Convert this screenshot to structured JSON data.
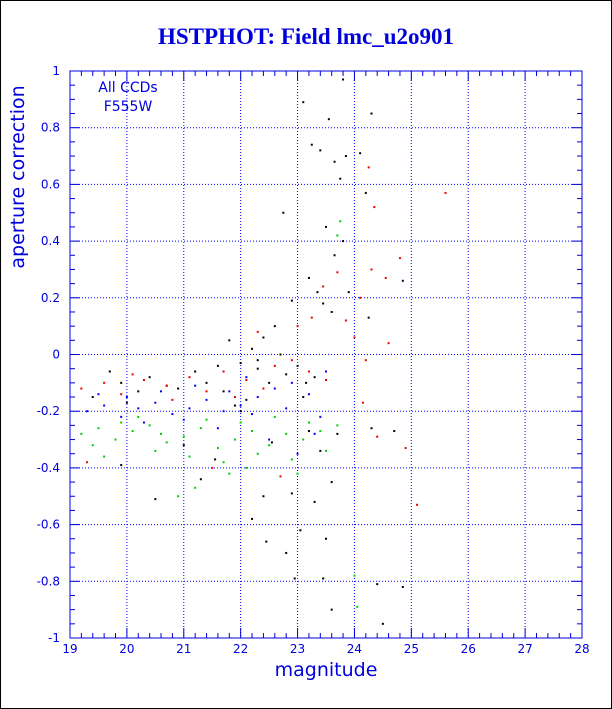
{
  "chart_data": {
    "type": "scatter",
    "title": "HSTPHOT: Field lmc_u2o901",
    "xlabel": "magnitude",
    "ylabel": "aperture correction",
    "xlim": [
      19,
      28
    ],
    "ylim": [
      -1,
      1
    ],
    "xticks": [
      19,
      20,
      21,
      22,
      23,
      24,
      25,
      26,
      27,
      28
    ],
    "xtick_labels": [
      "19",
      "20",
      "21",
      "22",
      "23",
      "24",
      "25",
      "26",
      "27",
      "28"
    ],
    "yticks": [
      -1,
      -0.8,
      -0.6,
      -0.4,
      -0.2,
      0,
      0.2,
      0.4,
      0.6,
      0.8,
      1
    ],
    "ytick_labels": [
      "-1",
      "-0.8",
      "-0.6",
      "-0.4",
      "-0.2",
      "0",
      "0.2",
      "0.4",
      "0.6",
      "0.8",
      "1"
    ],
    "grid": true,
    "annotations": [
      "All CCDs",
      "F555W"
    ],
    "colors": {
      "title": "#0000dd",
      "axis": "#0000dd",
      "grid": "#0000ff"
    },
    "series": [
      {
        "color": "#000000",
        "points": [
          [
            23.1,
            0.89
          ],
          [
            23.25,
            0.74
          ],
          [
            23.4,
            0.72
          ],
          [
            23.55,
            0.83
          ],
          [
            23.65,
            0.68
          ],
          [
            23.75,
            0.62
          ],
          [
            23.8,
            0.97
          ],
          [
            23.85,
            0.7
          ],
          [
            22.75,
            0.5
          ],
          [
            23.5,
            0.45
          ],
          [
            23.65,
            0.35
          ],
          [
            23.8,
            0.4
          ],
          [
            24.1,
            0.71
          ],
          [
            24.2,
            0.57
          ],
          [
            24.3,
            0.85
          ],
          [
            24.85,
            0.26
          ],
          [
            23.2,
            0.27
          ],
          [
            23.35,
            0.22
          ],
          [
            23.45,
            0.18
          ],
          [
            23.9,
            0.22
          ],
          [
            24.25,
            0.13
          ],
          [
            22.9,
            0.19
          ],
          [
            23.6,
            0.15
          ],
          [
            22.6,
            0.1
          ],
          [
            22.4,
            0.06
          ],
          [
            22.2,
            0.02
          ],
          [
            21.8,
            0.05
          ],
          [
            22.0,
            -0.03
          ],
          [
            21.6,
            -0.04
          ],
          [
            22.3,
            -0.02
          ],
          [
            22.7,
            0.0
          ],
          [
            23.0,
            -0.04
          ],
          [
            21.2,
            -0.06
          ],
          [
            20.4,
            -0.08
          ],
          [
            19.7,
            -0.06
          ],
          [
            23.3,
            -0.08
          ],
          [
            21.4,
            -0.1
          ],
          [
            20.9,
            -0.12
          ],
          [
            22.5,
            -0.1
          ],
          [
            19.4,
            -0.15
          ],
          [
            21.9,
            -0.18
          ],
          [
            22.1,
            -0.16
          ],
          [
            20.2,
            -0.13
          ],
          [
            23.1,
            -0.15
          ],
          [
            20.7,
            -0.11
          ],
          [
            22.8,
            -0.07
          ],
          [
            21.7,
            -0.13
          ],
          [
            19.9,
            -0.1
          ],
          [
            23.2,
            -0.27
          ],
          [
            23.4,
            -0.34
          ],
          [
            23.6,
            -0.45
          ],
          [
            23.7,
            -0.28
          ],
          [
            24.3,
            -0.26
          ],
          [
            24.7,
            -0.27
          ],
          [
            22.4,
            -0.5
          ],
          [
            22.2,
            -0.58
          ],
          [
            22.45,
            -0.66
          ],
          [
            22.9,
            -0.49
          ],
          [
            23.3,
            -0.52
          ],
          [
            23.5,
            -0.65
          ],
          [
            23.05,
            -0.62
          ],
          [
            22.8,
            -0.7
          ],
          [
            22.95,
            -0.79
          ],
          [
            23.45,
            -0.79
          ],
          [
            23.6,
            -0.9
          ],
          [
            24.4,
            -0.81
          ],
          [
            24.5,
            -0.95
          ],
          [
            24.85,
            -0.82
          ],
          [
            20.5,
            -0.51
          ],
          [
            21.3,
            -0.44
          ],
          [
            19.9,
            -0.39
          ],
          [
            21.0,
            -0.32
          ],
          [
            22.55,
            -0.31
          ],
          [
            21.55,
            -0.37
          ],
          [
            22.3,
            -0.05
          ],
          [
            23.15,
            -0.1
          ],
          [
            22.0,
            -0.2
          ],
          [
            20.0,
            -0.17
          ]
        ]
      },
      {
        "color": "#ee0000",
        "points": [
          [
            24.25,
            0.66
          ],
          [
            24.35,
            0.52
          ],
          [
            25.6,
            0.57
          ],
          [
            24.8,
            0.34
          ],
          [
            24.3,
            0.3
          ],
          [
            24.55,
            0.27
          ],
          [
            24.1,
            0.2
          ],
          [
            23.7,
            0.29
          ],
          [
            23.45,
            0.24
          ],
          [
            23.25,
            0.13
          ],
          [
            23.0,
            0.1
          ],
          [
            23.85,
            0.12
          ],
          [
            24.0,
            0.06
          ],
          [
            24.2,
            -0.02
          ],
          [
            24.6,
            0.04
          ],
          [
            22.3,
            0.08
          ],
          [
            22.9,
            -0.02
          ],
          [
            21.7,
            -0.06
          ],
          [
            21.1,
            -0.08
          ],
          [
            20.3,
            -0.09
          ],
          [
            19.6,
            -0.1
          ],
          [
            19.2,
            -0.12
          ],
          [
            19.9,
            -0.14
          ],
          [
            20.7,
            -0.11
          ],
          [
            21.4,
            -0.13
          ],
          [
            22.1,
            -0.09
          ],
          [
            22.6,
            -0.04
          ],
          [
            23.2,
            -0.06
          ],
          [
            24.15,
            -0.17
          ],
          [
            24.4,
            -0.29
          ],
          [
            24.9,
            -0.33
          ],
          [
            25.1,
            -0.53
          ],
          [
            21.5,
            -0.4
          ],
          [
            22.7,
            -0.43
          ],
          [
            19.3,
            -0.38
          ],
          [
            20.1,
            -0.07
          ],
          [
            20.8,
            -0.16
          ],
          [
            21.9,
            -0.15
          ],
          [
            22.4,
            -0.12
          ],
          [
            23.5,
            -0.09
          ]
        ]
      },
      {
        "color": "#0000ff",
        "points": [
          [
            19.3,
            -0.2
          ],
          [
            19.6,
            -0.18
          ],
          [
            19.9,
            -0.22
          ],
          [
            20.2,
            -0.19
          ],
          [
            20.5,
            -0.17
          ],
          [
            20.8,
            -0.21
          ],
          [
            21.1,
            -0.19
          ],
          [
            21.4,
            -0.16
          ],
          [
            21.7,
            -0.2
          ],
          [
            22.0,
            -0.18
          ],
          [
            22.3,
            -0.15
          ],
          [
            22.6,
            -0.12
          ],
          [
            22.9,
            -0.1
          ],
          [
            23.2,
            -0.14
          ],
          [
            23.5,
            -0.06
          ],
          [
            19.5,
            -0.14
          ],
          [
            20.0,
            -0.15
          ],
          [
            20.6,
            -0.13
          ],
          [
            21.2,
            -0.11
          ],
          [
            21.8,
            -0.13
          ],
          [
            22.2,
            -0.21
          ],
          [
            22.8,
            -0.19
          ],
          [
            23.4,
            -0.22
          ],
          [
            23.0,
            -0.35
          ],
          [
            22.5,
            -0.3
          ],
          [
            21.6,
            -0.26
          ],
          [
            23.3,
            -0.28
          ],
          [
            21.0,
            -0.23
          ],
          [
            20.3,
            -0.24
          ],
          [
            22.1,
            -0.08
          ]
        ]
      },
      {
        "color": "#00cc00",
        "points": [
          [
            19.2,
            -0.28
          ],
          [
            19.5,
            -0.26
          ],
          [
            19.8,
            -0.3
          ],
          [
            20.1,
            -0.27
          ],
          [
            20.4,
            -0.25
          ],
          [
            20.7,
            -0.31
          ],
          [
            21.0,
            -0.29
          ],
          [
            21.3,
            -0.26
          ],
          [
            21.6,
            -0.33
          ],
          [
            21.9,
            -0.3
          ],
          [
            22.2,
            -0.27
          ],
          [
            22.5,
            -0.32
          ],
          [
            22.8,
            -0.28
          ],
          [
            23.1,
            -0.3
          ],
          [
            23.4,
            -0.27
          ],
          [
            23.7,
            -0.25
          ],
          [
            19.4,
            -0.32
          ],
          [
            19.9,
            -0.24
          ],
          [
            20.5,
            -0.34
          ],
          [
            21.1,
            -0.36
          ],
          [
            21.7,
            -0.38
          ],
          [
            22.3,
            -0.35
          ],
          [
            22.9,
            -0.37
          ],
          [
            23.5,
            -0.34
          ],
          [
            20.2,
            -0.22
          ],
          [
            21.4,
            -0.23
          ],
          [
            22.0,
            -0.24
          ],
          [
            22.6,
            -0.22
          ],
          [
            23.2,
            -0.24
          ],
          [
            21.8,
            -0.42
          ],
          [
            21.2,
            -0.47
          ],
          [
            20.9,
            -0.5
          ],
          [
            23.75,
            0.47
          ],
          [
            23.7,
            0.42
          ],
          [
            24.0,
            -0.78
          ],
          [
            24.05,
            -0.89
          ],
          [
            22.1,
            -0.4
          ],
          [
            23.0,
            -0.42
          ],
          [
            20.6,
            -0.28
          ],
          [
            19.6,
            -0.36
          ]
        ]
      }
    ]
  }
}
